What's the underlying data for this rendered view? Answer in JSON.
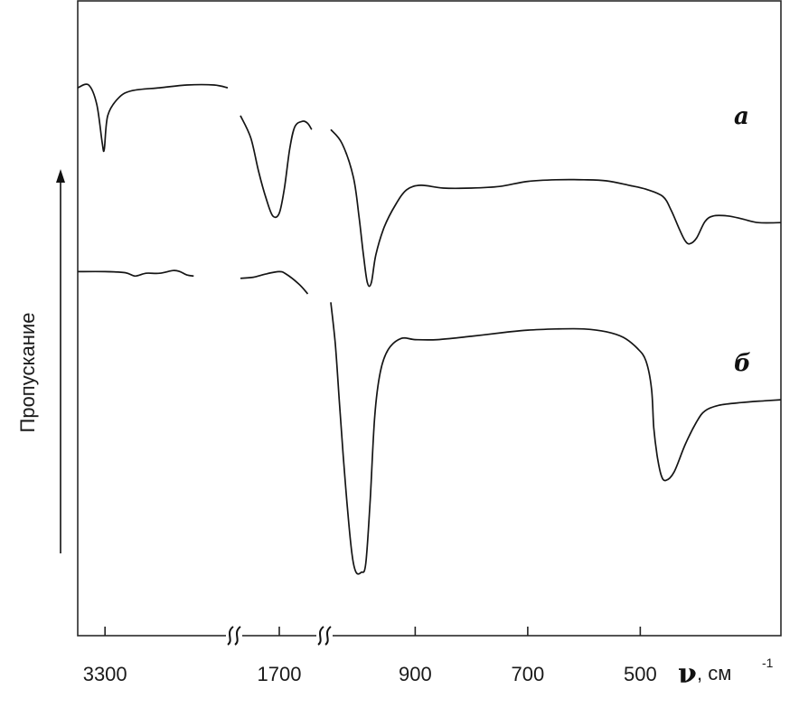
{
  "chart_data": {
    "type": "line",
    "title": "",
    "ylabel": "Пропускание",
    "xlabel": {
      "symbol": "ν",
      "unit": ", см",
      "unit_exponent": "-1"
    },
    "x_axis": {
      "reversed": true,
      "broken": true,
      "ticks": [
        "3300",
        "1700",
        "900",
        "700",
        "500"
      ],
      "segments": [
        {
          "from": 3500,
          "to": 2400
        },
        {
          "from": 2000,
          "to": 1400
        },
        {
          "from": 1050,
          "to": 250
        }
      ]
    },
    "grid": false,
    "legend": "none",
    "series": [
      {
        "name": "а",
        "segments": [
          [
            [
              3500,
              0.93
            ],
            [
              3420,
              0.935
            ],
            [
              3360,
              0.9
            ],
            [
              3320,
              0.83
            ],
            [
              3305,
              0.82
            ],
            [
              3280,
              0.88
            ],
            [
              3200,
              0.912
            ],
            [
              3100,
              0.925
            ],
            [
              2900,
              0.93
            ],
            [
              2700,
              0.935
            ],
            [
              2500,
              0.935
            ],
            [
              2400,
              0.93
            ]
          ],
          [
            [
              2000,
              0.88
            ],
            [
              1920,
              0.84
            ],
            [
              1860,
              0.78
            ],
            [
              1800,
              0.73
            ],
            [
              1750,
              0.7
            ],
            [
              1700,
              0.705
            ],
            [
              1660,
              0.75
            ],
            [
              1620,
              0.82
            ],
            [
              1580,
              0.86
            ],
            [
              1520,
              0.87
            ],
            [
              1480,
              0.866
            ],
            [
              1450,
              0.855
            ]
          ],
          [
            [
              1050,
              0.855
            ],
            [
              1030,
              0.83
            ],
            [
              1010,
              0.77
            ],
            [
              1000,
              0.7
            ],
            [
              992,
              0.63
            ],
            [
              985,
              0.58
            ],
            [
              978,
              0.58
            ],
            [
              970,
              0.63
            ],
            [
              955,
              0.68
            ],
            [
              935,
              0.72
            ],
            [
              915,
              0.747
            ],
            [
              890,
              0.755
            ],
            [
              850,
              0.75
            ],
            [
              800,
              0.75
            ],
            [
              750,
              0.753
            ],
            [
              700,
              0.762
            ],
            [
              650,
              0.765
            ],
            [
              600,
              0.765
            ],
            [
              560,
              0.763
            ],
            [
              520,
              0.755
            ],
            [
              490,
              0.748
            ],
            [
              460,
              0.735
            ],
            [
              445,
              0.71
            ],
            [
              430,
              0.675
            ],
            [
              420,
              0.655
            ],
            [
              412,
              0.65
            ],
            [
              400,
              0.66
            ],
            [
              385,
              0.69
            ],
            [
              370,
              0.7
            ],
            [
              345,
              0.7
            ],
            [
              320,
              0.695
            ],
            [
              290,
              0.688
            ],
            [
              250,
              0.688
            ]
          ]
        ]
      },
      {
        "name": "б",
        "segments": [
          [
            [
              3500,
              0.6
            ],
            [
              3300,
              0.6
            ],
            [
              3150,
              0.598
            ],
            [
              3080,
              0.592
            ],
            [
              3000,
              0.597
            ],
            [
              2900,
              0.597
            ],
            [
              2800,
              0.602
            ],
            [
              2750,
              0.6
            ],
            [
              2700,
              0.594
            ],
            [
              2650,
              0.592
            ]
          ],
          [
            [
              2000,
              0.588
            ],
            [
              1900,
              0.59
            ],
            [
              1800,
              0.596
            ],
            [
              1700,
              0.6
            ],
            [
              1650,
              0.596
            ],
            [
              1550,
              0.578
            ],
            [
              1480,
              0.56
            ]
          ],
          [
            [
              1050,
              0.545
            ],
            [
              1042,
              0.47
            ],
            [
              1035,
              0.37
            ],
            [
              1028,
              0.27
            ],
            [
              1020,
              0.17
            ],
            [
              1012,
              0.09
            ],
            [
              1005,
              0.06
            ],
            [
              996,
              0.06
            ],
            [
              988,
              0.075
            ],
            [
              980,
              0.19
            ],
            [
              972,
              0.34
            ],
            [
              962,
              0.42
            ],
            [
              948,
              0.46
            ],
            [
              925,
              0.48
            ],
            [
              900,
              0.478
            ],
            [
              860,
              0.478
            ],
            [
              800,
              0.484
            ],
            [
              740,
              0.491
            ],
            [
              700,
              0.495
            ],
            [
              650,
              0.497
            ],
            [
              600,
              0.497
            ],
            [
              560,
              0.492
            ],
            [
              530,
              0.482
            ],
            [
              505,
              0.462
            ],
            [
              490,
              0.44
            ],
            [
              480,
              0.39
            ],
            [
              476,
              0.32
            ],
            [
              470,
              0.27
            ],
            [
              463,
              0.235
            ],
            [
              455,
              0.225
            ],
            [
              440,
              0.24
            ],
            [
              420,
              0.29
            ],
            [
              400,
              0.33
            ],
            [
              385,
              0.35
            ],
            [
              360,
              0.36
            ],
            [
              320,
              0.365
            ],
            [
              280,
              0.368
            ],
            [
              250,
              0.37
            ]
          ]
        ]
      }
    ],
    "annotations": [
      "а",
      "б"
    ]
  }
}
